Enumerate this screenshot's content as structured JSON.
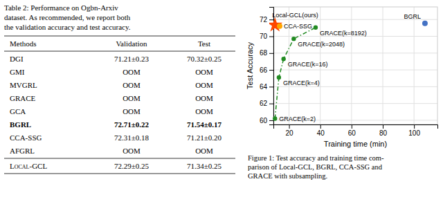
{
  "chart_data": [
    {
      "type": "table",
      "caption": [
        "Table 2:  Performance on Ogbn-Arxiv",
        "dataset.  As recommended, we report both",
        "the validation accuracy and test accuracy."
      ],
      "columns": [
        "Methods",
        "Validation",
        "Test"
      ],
      "rows": [
        [
          "DGI",
          "71.21±0.23",
          "70.32±0.25"
        ],
        [
          "GMI",
          "OOM",
          "OOM"
        ],
        [
          "MVGRL",
          "OOM",
          "OOM"
        ],
        [
          "GRACE",
          "OOM",
          "OOM"
        ],
        [
          "GCA",
          "OOM",
          "OOM"
        ],
        [
          "BGRL",
          "72.71±0.22",
          "71.54±0.17"
        ],
        [
          "CCA-SSG",
          "72.31±0.18",
          "71.21±0.20"
        ],
        [
          "AFGRL",
          "OOM",
          "OOM"
        ]
      ],
      "bold_rows": [
        "BGRL"
      ],
      "footer_rows": [
        [
          "Local-GCL",
          "72.29±0.25",
          "71.34±0.25"
        ]
      ]
    },
    {
      "type": "scatter",
      "xlabel": "Training time (min)",
      "ylabel": "Test Accuracy",
      "xlim": [
        10,
        115
      ],
      "ylim": [
        59.5,
        73.5
      ],
      "xticks": [
        20,
        40,
        60,
        80,
        100
      ],
      "yticks": [
        60,
        62,
        64,
        66,
        68,
        70,
        72
      ],
      "grid": true,
      "series": [
        {
          "type": "line",
          "color": "#228B22",
          "line_style": "dashdot",
          "marker": "circle",
          "x": [
            11,
            13.5,
            16.5,
            23,
            37
          ],
          "values": [
            60.2,
            65.1,
            67.3,
            69.7,
            71.05
          ],
          "labels": [
            "GRACE(k=2)",
            "GRACE(k=4)",
            "GRACE(k=16)",
            "GRACE(k=2048)",
            "GRACE(k=8192)"
          ]
        },
        {
          "type": "scatter",
          "color": "#FF4500",
          "marker": "star",
          "x": [
            11.0
          ],
          "values": [
            71.34
          ],
          "labels": [
            "Local-GCL(ours)"
          ]
        },
        {
          "type": "scatter",
          "color": "#FFA500",
          "marker": "circle",
          "x": [
            14.0
          ],
          "values": [
            71.21
          ],
          "labels": [
            "CCA-SSG"
          ]
        },
        {
          "type": "scatter",
          "color": "#4472C4",
          "marker": "circle",
          "x": [
            107
          ],
          "values": [
            71.54
          ],
          "labels": [
            "BGRL"
          ]
        }
      ],
      "caption": [
        "Figure 1:  Test accuracy and training time com-",
        "parison of Local-GCL, BGRL, CCA-SSG and",
        "GRACE with subsampling."
      ]
    }
  ]
}
